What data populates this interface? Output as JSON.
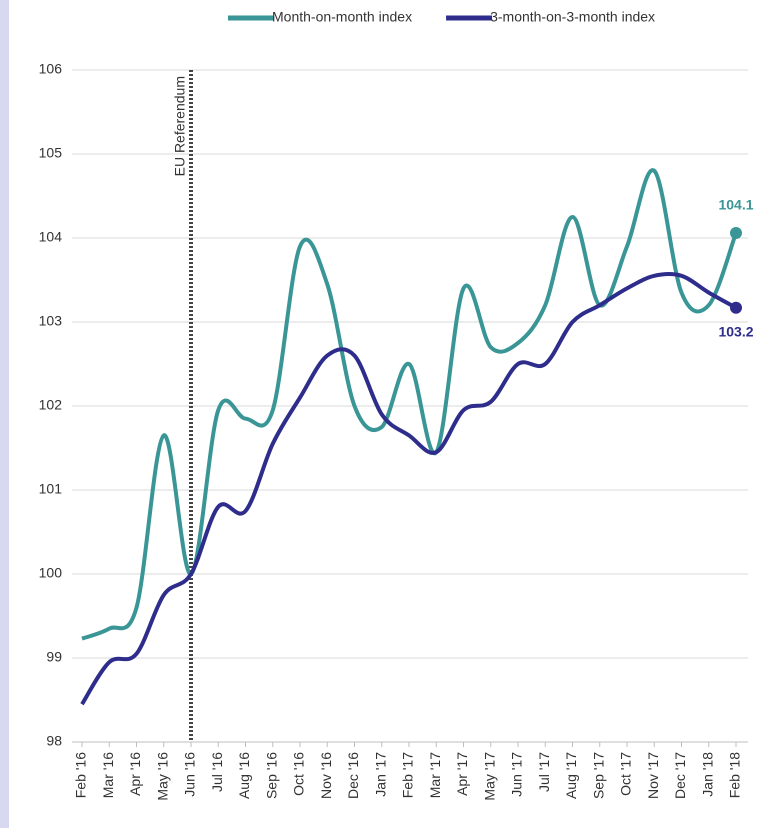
{
  "chart_data": {
    "type": "line",
    "categories": [
      "Feb '16",
      "Mar '16",
      "Apr '16",
      "May '16",
      "Jun '16",
      "Jul '16",
      "Aug '16",
      "Sep '16",
      "Oct '16",
      "Nov '16",
      "Dec '16",
      "Jan '17",
      "Feb '17",
      "Mar '17",
      "Apr '17",
      "May '17",
      "Jun '17",
      "Jul '17",
      "Aug '17",
      "Sep '17",
      "Oct '17",
      "Nov '17",
      "Dec '17",
      "Jan '18",
      "Feb '18"
    ],
    "series": [
      {
        "name": "Month-on-month index",
        "color": "#3a9696",
        "values": [
          99.23,
          99.35,
          99.6,
          101.65,
          100.0,
          101.95,
          101.85,
          101.95,
          103.9,
          103.45,
          102.0,
          101.75,
          102.5,
          101.45,
          103.4,
          102.7,
          102.75,
          103.2,
          104.25,
          103.2,
          103.9,
          104.8,
          103.35,
          103.2,
          104.06
        ],
        "value_labels": [
          null,
          null,
          null,
          null,
          null,
          null,
          null,
          null,
          null,
          null,
          null,
          null,
          null,
          null,
          null,
          null,
          null,
          null,
          null,
          null,
          null,
          null,
          null,
          null,
          "104.1"
        ]
      },
      {
        "name": "3-month-on-3-month index",
        "color": "#2e2d8c",
        "values": [
          98.45,
          98.95,
          99.05,
          99.75,
          100.0,
          100.8,
          100.75,
          101.55,
          102.1,
          102.6,
          102.6,
          101.9,
          101.65,
          101.45,
          101.95,
          102.05,
          102.5,
          102.5,
          103.0,
          103.2,
          103.4,
          103.55,
          103.55,
          103.35,
          103.17
        ],
        "value_labels": [
          null,
          null,
          null,
          null,
          null,
          null,
          null,
          null,
          null,
          null,
          null,
          null,
          null,
          null,
          null,
          null,
          null,
          null,
          null,
          null,
          null,
          null,
          null,
          null,
          "103.2"
        ]
      }
    ],
    "ylim": [
      98,
      106
    ],
    "yticks": [
      98,
      99,
      100,
      101,
      102,
      103,
      104,
      105,
      106
    ],
    "grid": true,
    "annotations": [
      {
        "text": "EU Referendum",
        "x": "Jun '16"
      }
    ]
  }
}
